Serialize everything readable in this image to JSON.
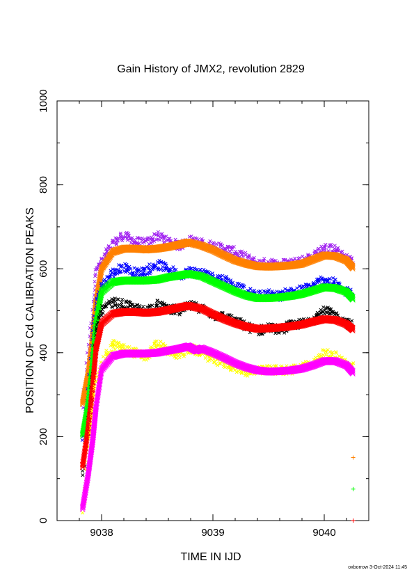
{
  "chart_data": {
    "type": "scatter",
    "title": "Gain History of JMX2, revolution 2829",
    "xlabel": "TIME IN IJD",
    "ylabel": "POSITION OF Cd CALIBRATION PEAKS",
    "xlim": [
      9037.6,
      9040.4
    ],
    "ylim": [
      0,
      1000
    ],
    "x_ticks": [
      "9038",
      "9039",
      "9040"
    ],
    "y_ticks": [
      "0",
      "200",
      "400",
      "600",
      "800",
      "1000"
    ],
    "x_tick_values": [
      9038,
      9039,
      9040
    ],
    "y_tick_values": [
      0,
      200,
      400,
      600,
      800,
      1000
    ],
    "x_minor_step": 0.2,
    "y_minor_step": 100,
    "legend": "none",
    "series": [
      {
        "color": "#a020f0",
        "marker": "x",
        "style": "raw",
        "x": [
          9037.83,
          9037.88,
          9037.92,
          9037.95,
          9038.0,
          9038.1,
          9038.2,
          9038.3,
          9038.4,
          9038.5,
          9038.6,
          9038.7,
          9038.8,
          9038.9,
          9039.0,
          9039.1,
          9039.2,
          9039.3,
          9039.4,
          9039.5,
          9039.6,
          9039.7,
          9039.8,
          9039.9,
          9040.0,
          9040.1,
          9040.2,
          9040.26
        ],
        "y": [
          270,
          400,
          500,
          600,
          615,
          660,
          680,
          665,
          660,
          680,
          665,
          655,
          668,
          660,
          655,
          648,
          640,
          625,
          612,
          615,
          610,
          615,
          620,
          630,
          650,
          645,
          625,
          615
        ]
      },
      {
        "color": "#ff8000",
        "marker": "fit",
        "style": "fit",
        "x": [
          9037.83,
          9037.88,
          9037.92,
          9037.95,
          9038.0,
          9038.1,
          9038.2,
          9038.3,
          9038.4,
          9038.5,
          9038.6,
          9038.7,
          9038.78,
          9038.9,
          9039.0,
          9039.1,
          9039.2,
          9039.3,
          9039.4,
          9039.5,
          9039.6,
          9039.7,
          9039.8,
          9039.9,
          9040.0,
          9040.1,
          9040.2,
          9040.26
        ],
        "y": [
          280,
          350,
          440,
          520,
          600,
          640,
          648,
          648,
          646,
          648,
          652,
          658,
          663,
          655,
          645,
          632,
          620,
          612,
          606,
          605,
          606,
          608,
          612,
          622,
          632,
          630,
          620,
          602
        ]
      },
      {
        "color": "#0000ff",
        "marker": "x",
        "style": "raw",
        "x": [
          9037.83,
          9037.88,
          9037.92,
          9037.95,
          9038.0,
          9038.1,
          9038.2,
          9038.3,
          9038.4,
          9038.5,
          9038.6,
          9038.7,
          9038.8,
          9038.9,
          9039.0,
          9039.1,
          9039.2,
          9039.3,
          9039.4,
          9039.5,
          9039.6,
          9039.7,
          9039.8,
          9039.9,
          9040.0,
          9040.1,
          9040.2,
          9040.26
        ],
        "y": [
          190,
          300,
          420,
          520,
          560,
          590,
          605,
          590,
          595,
          610,
          600,
          585,
          595,
          590,
          580,
          575,
          560,
          545,
          535,
          540,
          535,
          545,
          550,
          560,
          575,
          565,
          545,
          540
        ]
      },
      {
        "color": "#00ff00",
        "marker": "fit",
        "style": "fit",
        "x": [
          9037.83,
          9037.88,
          9037.92,
          9037.95,
          9038.0,
          9038.1,
          9038.2,
          9038.3,
          9038.4,
          9038.5,
          9038.6,
          9038.7,
          9038.78,
          9038.9,
          9039.0,
          9039.1,
          9039.2,
          9039.3,
          9039.4,
          9039.5,
          9039.6,
          9039.7,
          9039.8,
          9039.9,
          9040.0,
          9040.1,
          9040.2,
          9040.26
        ],
        "y": [
          205,
          280,
          380,
          470,
          545,
          568,
          572,
          572,
          572,
          574,
          580,
          584,
          588,
          582,
          570,
          558,
          546,
          536,
          530,
          530,
          532,
          535,
          540,
          548,
          556,
          554,
          545,
          528
        ]
      },
      {
        "color": "#000000",
        "marker": "x",
        "style": "raw",
        "x": [
          9037.83,
          9037.88,
          9037.92,
          9037.95,
          9038.0,
          9038.1,
          9038.2,
          9038.3,
          9038.4,
          9038.5,
          9038.6,
          9038.7,
          9038.8,
          9038.9,
          9039.0,
          9039.1,
          9039.2,
          9039.3,
          9039.4,
          9039.5,
          9039.6,
          9039.7,
          9039.8,
          9039.9,
          9040.0,
          9040.1,
          9040.2,
          9040.26
        ],
        "y": [
          110,
          220,
          340,
          450,
          500,
          520,
          515,
          505,
          500,
          515,
          505,
          500,
          512,
          505,
          490,
          485,
          475,
          462,
          452,
          460,
          455,
          465,
          470,
          480,
          500,
          490,
          470,
          465
        ]
      },
      {
        "color": "#ff0000",
        "marker": "fit",
        "style": "fit",
        "x": [
          9037.83,
          9037.88,
          9037.92,
          9037.95,
          9038.0,
          9038.1,
          9038.2,
          9038.3,
          9038.4,
          9038.5,
          9038.6,
          9038.7,
          9038.78,
          9038.9,
          9039.0,
          9039.1,
          9039.2,
          9039.3,
          9039.4,
          9039.5,
          9039.6,
          9039.7,
          9039.8,
          9039.9,
          9040.0,
          9040.1,
          9040.2,
          9040.26
        ],
        "y": [
          130,
          220,
          320,
          410,
          470,
          493,
          497,
          497,
          495,
          497,
          502,
          508,
          512,
          505,
          492,
          480,
          470,
          462,
          457,
          458,
          460,
          463,
          467,
          474,
          480,
          478,
          468,
          455
        ]
      },
      {
        "color": "#ffff00",
        "marker": "x",
        "style": "raw",
        "x": [
          9037.83,
          9037.88,
          9037.92,
          9037.95,
          9038.0,
          9038.1,
          9038.2,
          9038.3,
          9038.4,
          9038.5,
          9038.6,
          9038.7,
          9038.8,
          9038.9,
          9039.0,
          9039.1,
          9039.2,
          9039.3,
          9039.4,
          9039.5,
          9039.6,
          9039.7,
          9039.8,
          9039.9,
          9040.0,
          9040.1,
          9040.2,
          9040.26
        ],
        "y": [
          20,
          130,
          240,
          330,
          370,
          420,
          410,
          400,
          390,
          420,
          405,
          395,
          410,
          400,
          385,
          375,
          365,
          355,
          355,
          360,
          358,
          360,
          365,
          375,
          398,
          392,
          370,
          365
        ]
      },
      {
        "color": "#ff00ff",
        "marker": "fit",
        "style": "fit",
        "x": [
          9037.83,
          9037.88,
          9037.92,
          9037.95,
          9038.0,
          9038.1,
          9038.2,
          9038.3,
          9038.4,
          9038.5,
          9038.6,
          9038.7,
          9038.78,
          9038.85,
          9038.9,
          9039.0,
          9039.1,
          9039.2,
          9039.3,
          9039.4,
          9039.5,
          9039.6,
          9039.7,
          9039.8,
          9039.9,
          9040.0,
          9040.1,
          9040.2,
          9040.26
        ],
        "y": [
          30,
          110,
          190,
          270,
          360,
          392,
          398,
          398,
          398,
          400,
          405,
          410,
          415,
          405,
          410,
          400,
          388,
          375,
          365,
          358,
          355,
          356,
          358,
          362,
          370,
          380,
          380,
          370,
          352
        ]
      },
      {
        "color": "#ff8000",
        "marker": "+",
        "style": "point",
        "x": [
          9040.26
        ],
        "y": [
          150
        ]
      },
      {
        "color": "#00ff00",
        "marker": "+",
        "style": "point",
        "x": [
          9040.26
        ],
        "y": [
          75
        ]
      },
      {
        "color": "#ff0000",
        "marker": "+",
        "style": "point",
        "x": [
          9040.26
        ],
        "y": [
          0
        ]
      }
    ]
  },
  "footer": {
    "stamp": "oxborrow  3-Oct-2024 11:45"
  }
}
